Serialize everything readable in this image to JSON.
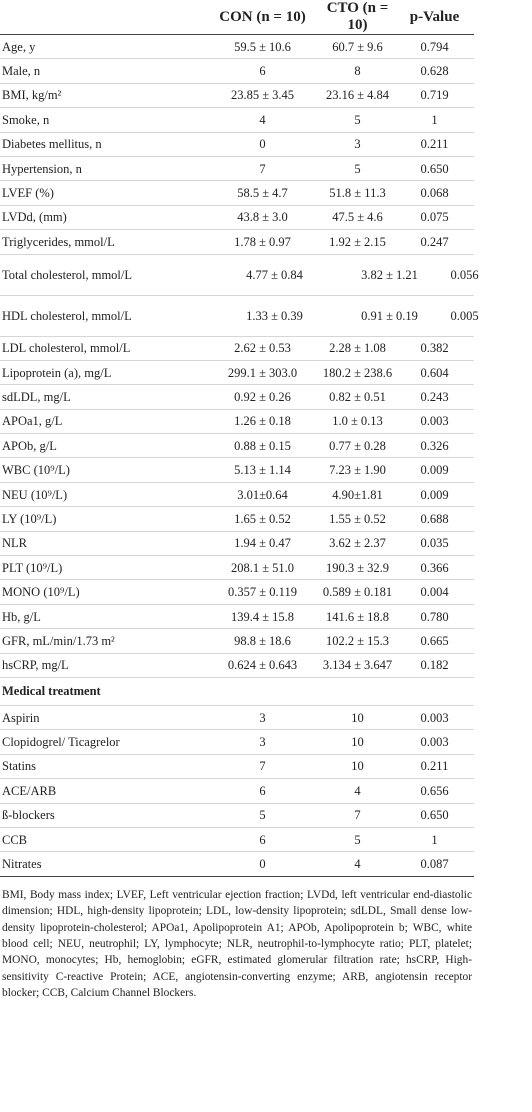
{
  "table": {
    "header": [
      "",
      "CON (n = 10)",
      "CTO (n = 10)",
      "p-Value"
    ],
    "rows": [
      [
        "Age, y",
        "59.5 ± 10.6",
        "60.7 ± 9.6",
        "0.794"
      ],
      [
        "Male, n",
        "6",
        "8",
        "0.628"
      ],
      [
        "BMI, kg/m²",
        "23.85 ± 3.45",
        "23.16 ± 4.84",
        "0.719"
      ],
      [
        "Smoke, n",
        "4",
        "5",
        "1"
      ],
      [
        "Diabetes mellitus, n",
        "0",
        "3",
        "0.211"
      ],
      [
        "Hypertension, n",
        "7",
        "5",
        "0.650"
      ],
      [
        "LVEF (%)",
        "58.5 ± 4.7",
        "51.8 ± 11.3",
        "0.068"
      ],
      [
        "LVDd, (mm)",
        "43.8 ± 3.0",
        "47.5 ± 4.6",
        "0.075"
      ],
      [
        "Triglycerides, mmol/L",
        "1.78 ± 0.97",
        "1.92 ± 2.15",
        "0.247"
      ],
      [
        "Total cholesterol, mmol/L",
        "4.77 ± 0.84",
        "3.82 ± 1.21",
        "0.056"
      ],
      [
        "HDL cholesterol, mmol/L",
        "1.33 ± 0.39",
        "0.91 ± 0.19",
        "0.005"
      ],
      [
        "LDL cholesterol, mmol/L",
        "2.62 ± 0.53",
        "2.28 ± 1.08",
        "0.382"
      ],
      [
        "Lipoprotein (a), mg/L",
        "299.1 ± 303.0",
        "180.2 ± 238.6",
        "0.604"
      ],
      [
        "sdLDL, mg/L",
        "0.92 ± 0.26",
        "0.82 ± 0.51",
        "0.243"
      ],
      [
        "APOa1, g/L",
        "1.26 ± 0.18",
        "1.0 ± 0.13",
        "0.003"
      ],
      [
        "APOb, g/L",
        "0.88 ± 0.15",
        "0.77 ± 0.28",
        "0.326"
      ],
      [
        "WBC (10⁹/L)",
        "5.13 ± 1.14",
        "7.23 ± 1.90",
        "0.009"
      ],
      [
        "NEU (10⁹/L)",
        "3.01±0.64",
        "4.90±1.81",
        "0.009"
      ],
      [
        "LY (10⁹/L)",
        "1.65 ± 0.52",
        "1.55 ± 0.52",
        "0.688"
      ],
      [
        "NLR",
        "1.94 ± 0.47",
        "3.62 ± 2.37",
        "0.035"
      ],
      [
        "PLT (10⁹/L)",
        "208.1 ± 51.0",
        "190.3 ± 32.9",
        "0.366"
      ],
      [
        "MONO (10⁹/L)",
        "0.357 ± 0.119",
        "0.589 ± 0.181",
        "0.004"
      ],
      [
        "Hb, g/L",
        "139.4 ± 15.8",
        "141.6 ± 18.8",
        "0.780"
      ],
      [
        "GFR, mL/min/1.73 m²",
        "98.8 ± 18.6",
        "102.2 ± 15.3",
        "0.665"
      ],
      [
        "hsCRP, mg/L",
        "0.624 ± 0.643",
        "3.134 ± 3.647",
        "0.182"
      ]
    ],
    "section": "Medical treatment",
    "treatment_rows": [
      [
        "Aspirin",
        "3",
        "10",
        "0.003"
      ],
      [
        "Clopidogrel/ Ticagrelor",
        "3",
        "10",
        "0.003"
      ],
      [
        "Statins",
        "7",
        "10",
        "0.211"
      ],
      [
        "ACE/ARB",
        "6",
        "4",
        "0.656"
      ],
      [
        "ß-blockers",
        "5",
        "7",
        "0.650"
      ],
      [
        "CCB",
        "6",
        "5",
        "1"
      ],
      [
        "Nitrates",
        "0",
        "4",
        "0.087"
      ]
    ]
  },
  "footnote": "BMI, Body mass index; LVEF, Left ventricular ejection fraction; LVDd, left ventricular end-diastolic dimension; HDL, high-density lipoprotein; LDL, low-density lipoprotein; sdLDL, Small dense low-density lipoprotein-cholesterol; APOa1, Apolipoprotein A1; APOb, Apolipoprotein b; WBC, white blood cell; NEU, neutrophil; LY, lymphocyte; NLR, neutrophil-to-lymphocyte ratio; PLT, platelet; MONO, monocytes; Hb, hemoglobin; eGFR, estimated glomerular filtration rate; hsCRP, High-sensitivity C-reactive Protein; ACE, angiotensin-converting enzyme; ARB, angiotensin receptor blocker; CCB, Calcium Channel Blockers."
}
